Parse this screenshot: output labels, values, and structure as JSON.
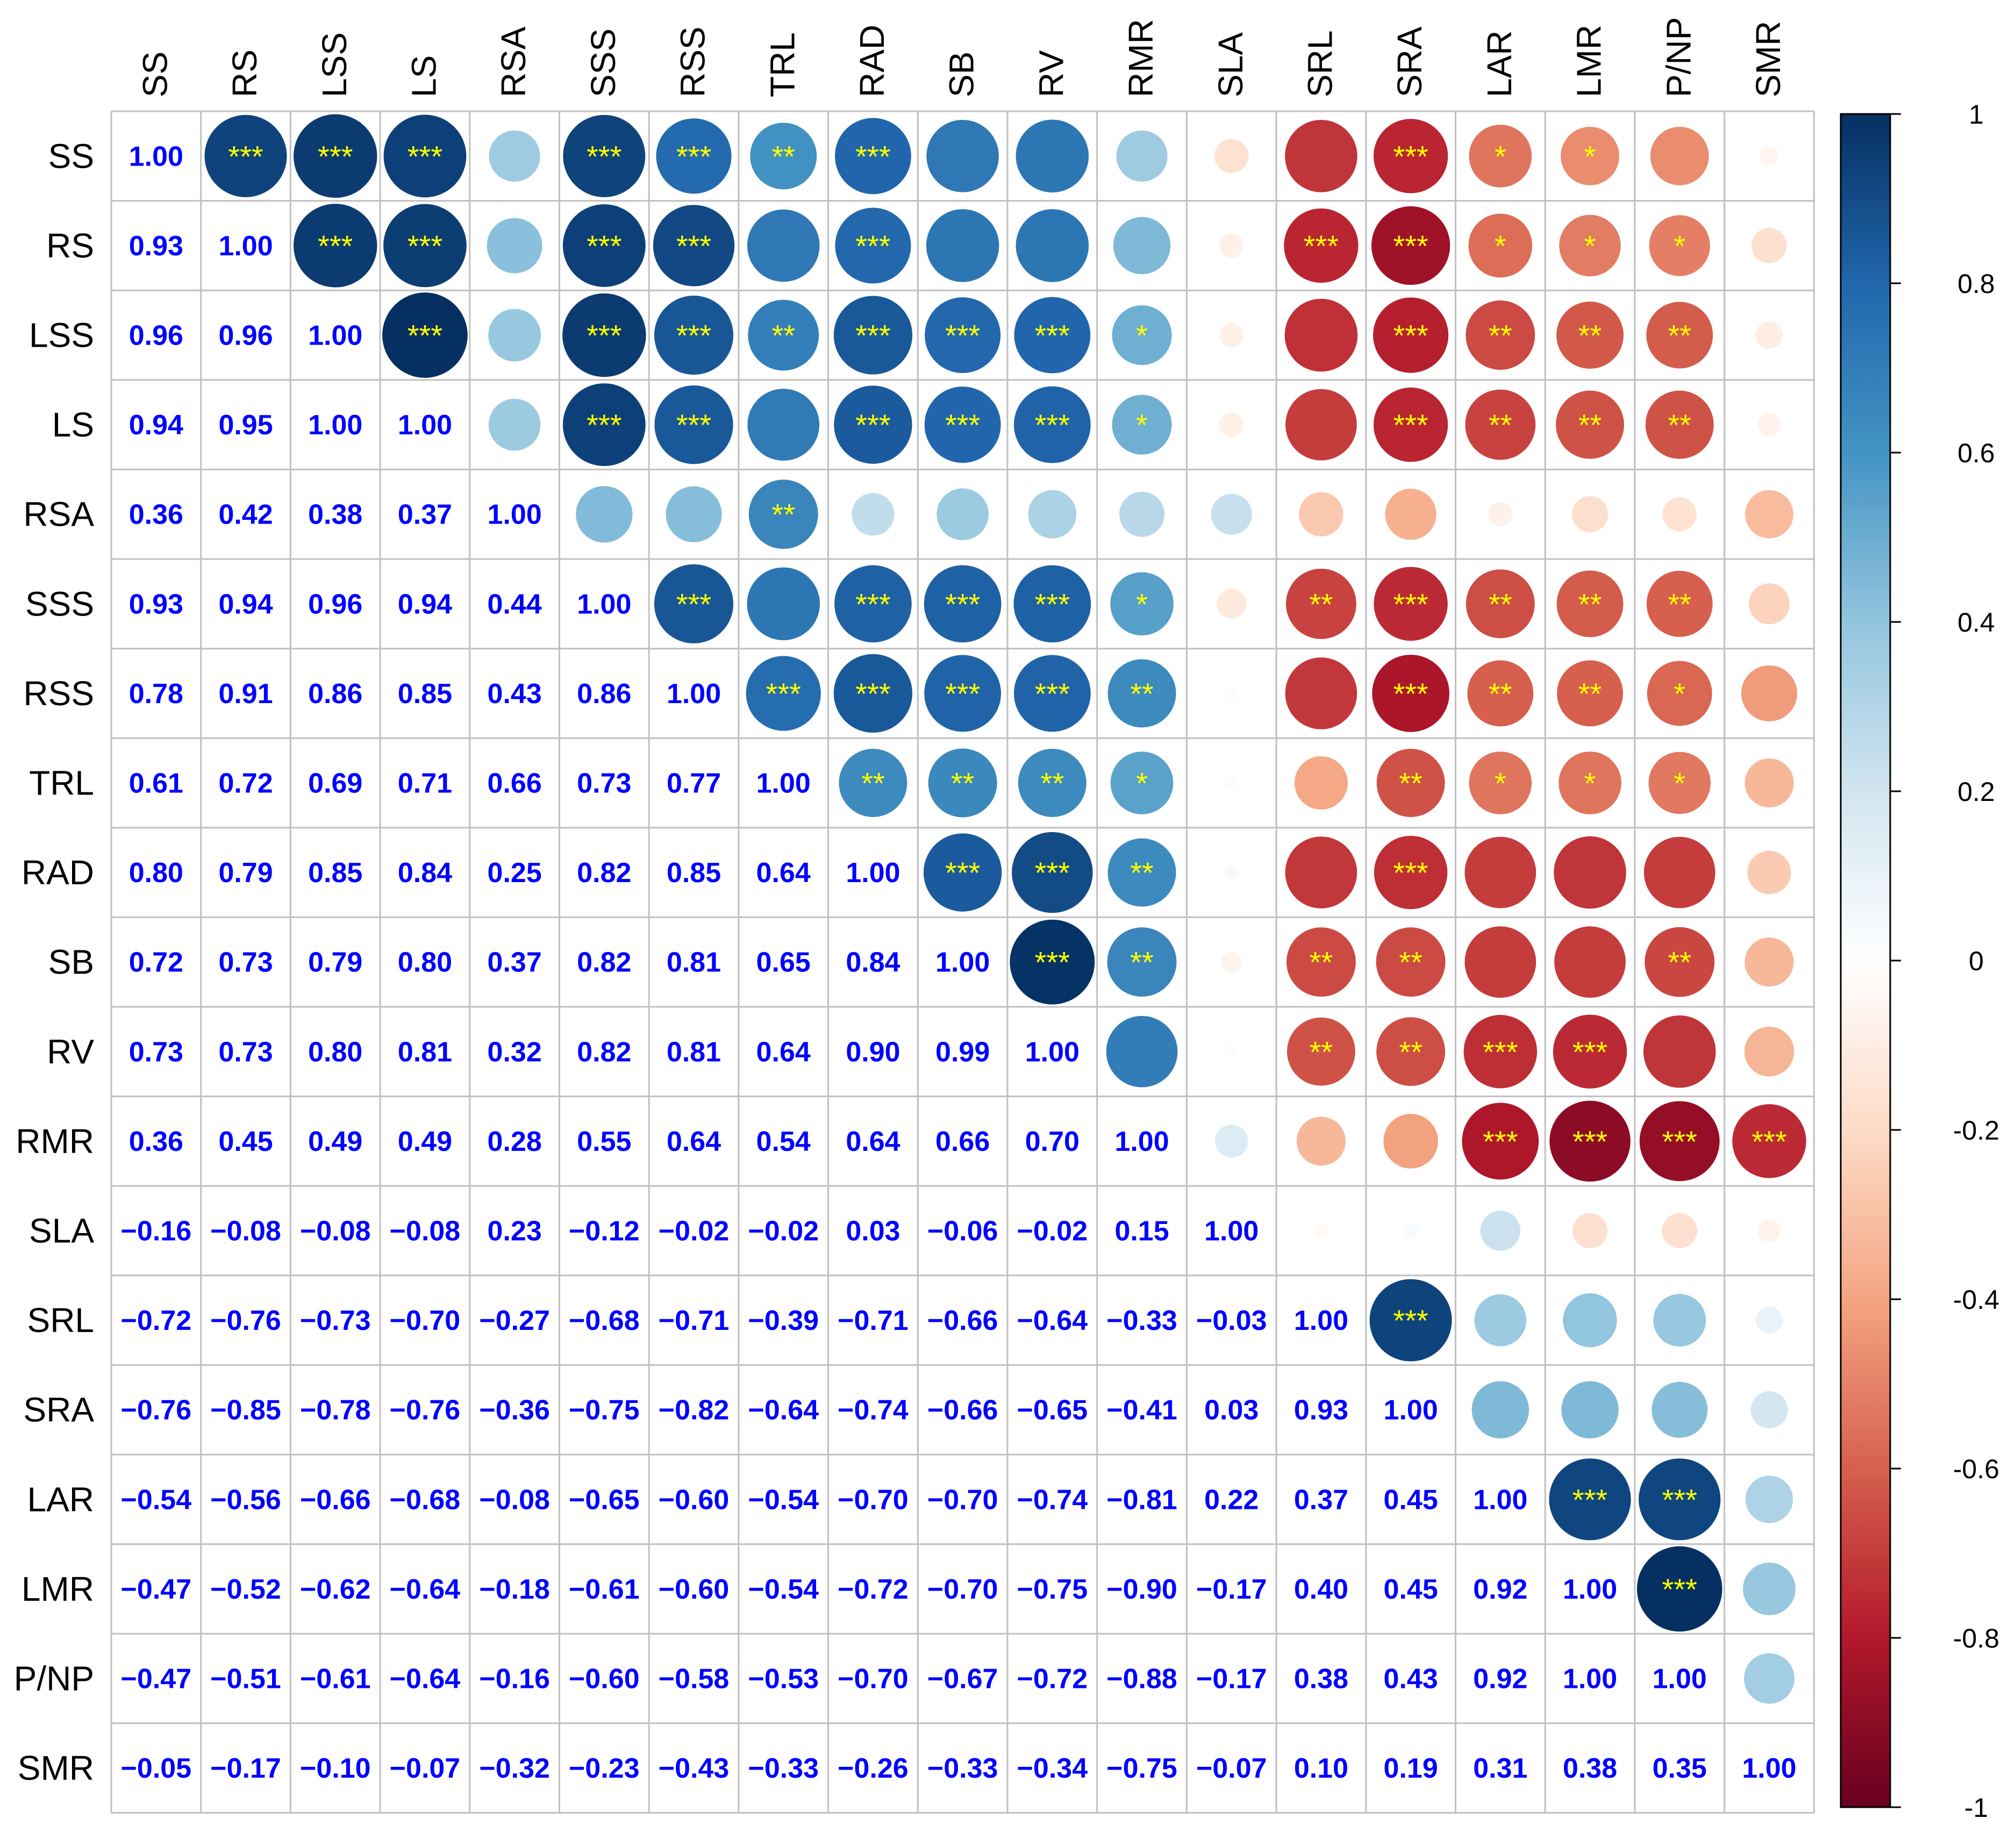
{
  "chart_data": {
    "type": "heatmap",
    "title": "",
    "xlabel": "",
    "ylabel": "",
    "variables": [
      "SS",
      "RS",
      "LSS",
      "LS",
      "RSA",
      "SSS",
      "RSS",
      "TRL",
      "RAD",
      "SB",
      "RV",
      "RMR",
      "SLA",
      "SRL",
      "SRA",
      "LAR",
      "LMR",
      "P/NP",
      "SMR"
    ],
    "lower_triangle_values": [
      [
        1.0
      ],
      [
        0.93,
        1.0
      ],
      [
        0.96,
        0.96,
        1.0
      ],
      [
        0.94,
        0.95,
        1.0,
        1.0
      ],
      [
        0.36,
        0.42,
        0.38,
        0.37,
        1.0
      ],
      [
        0.93,
        0.94,
        0.96,
        0.94,
        0.44,
        1.0
      ],
      [
        0.78,
        0.91,
        0.86,
        0.85,
        0.43,
        0.86,
        1.0
      ],
      [
        0.61,
        0.72,
        0.69,
        0.71,
        0.66,
        0.73,
        0.77,
        1.0
      ],
      [
        0.8,
        0.79,
        0.85,
        0.84,
        0.25,
        0.82,
        0.85,
        0.64,
        1.0
      ],
      [
        0.72,
        0.73,
        0.79,
        0.8,
        0.37,
        0.82,
        0.81,
        0.65,
        0.84,
        1.0
      ],
      [
        0.73,
        0.73,
        0.8,
        0.81,
        0.32,
        0.82,
        0.81,
        0.64,
        0.9,
        0.99,
        1.0
      ],
      [
        0.36,
        0.45,
        0.49,
        0.49,
        0.28,
        0.55,
        0.64,
        0.54,
        0.64,
        0.66,
        0.7,
        1.0
      ],
      [
        -0.16,
        -0.08,
        -0.08,
        -0.08,
        0.23,
        -0.12,
        -0.02,
        -0.02,
        0.03,
        -0.06,
        -0.02,
        0.15,
        1.0
      ],
      [
        -0.72,
        -0.76,
        -0.73,
        -0.7,
        -0.27,
        -0.68,
        -0.71,
        -0.39,
        -0.71,
        -0.66,
        -0.64,
        -0.33,
        -0.03,
        1.0
      ],
      [
        -0.76,
        -0.85,
        -0.78,
        -0.76,
        -0.36,
        -0.75,
        -0.82,
        -0.64,
        -0.74,
        -0.66,
        -0.65,
        -0.41,
        0.03,
        0.93,
        1.0
      ],
      [
        -0.54,
        -0.56,
        -0.66,
        -0.68,
        -0.08,
        -0.65,
        -0.6,
        -0.54,
        -0.7,
        -0.7,
        -0.74,
        -0.81,
        0.22,
        0.37,
        0.45,
        1.0
      ],
      [
        -0.47,
        -0.52,
        -0.62,
        -0.64,
        -0.18,
        -0.61,
        -0.6,
        -0.54,
        -0.72,
        -0.7,
        -0.75,
        -0.9,
        -0.17,
        0.4,
        0.45,
        0.92,
        1.0
      ],
      [
        -0.47,
        -0.51,
        -0.61,
        -0.64,
        -0.16,
        -0.6,
        -0.58,
        -0.53,
        -0.7,
        -0.67,
        -0.72,
        -0.88,
        -0.17,
        0.38,
        0.43,
        0.92,
        1.0,
        1.0
      ],
      [
        -0.05,
        -0.17,
        -0.1,
        -0.07,
        -0.32,
        -0.23,
        -0.43,
        -0.33,
        -0.26,
        -0.33,
        -0.34,
        -0.75,
        -0.07,
        0.1,
        0.19,
        0.31,
        0.38,
        0.35,
        1.0
      ]
    ],
    "upper_circle_values": [
      [
        0.93,
        0.96,
        0.94,
        0.36,
        0.93,
        0.78,
        0.61,
        0.8,
        0.72,
        0.73,
        0.36,
        -0.16,
        -0.72,
        -0.76,
        -0.54,
        -0.47,
        -0.47,
        -0.05
      ],
      [
        0.96,
        0.95,
        0.42,
        0.94,
        0.91,
        0.72,
        0.79,
        0.73,
        0.73,
        0.45,
        -0.08,
        -0.76,
        -0.85,
        -0.56,
        -0.52,
        -0.51,
        -0.17
      ],
      [
        1.0,
        0.38,
        0.96,
        0.86,
        0.69,
        0.85,
        0.79,
        0.8,
        0.49,
        -0.08,
        -0.73,
        -0.78,
        -0.66,
        -0.62,
        -0.61,
        -0.1
      ],
      [
        0.37,
        0.94,
        0.85,
        0.71,
        0.84,
        0.8,
        0.81,
        0.49,
        -0.08,
        -0.7,
        -0.76,
        -0.68,
        -0.64,
        -0.64,
        -0.07
      ],
      [
        0.44,
        0.43,
        0.66,
        0.25,
        0.37,
        0.32,
        0.28,
        0.23,
        -0.27,
        -0.36,
        -0.08,
        -0.18,
        -0.16,
        -0.32
      ],
      [
        0.86,
        0.73,
        0.82,
        0.82,
        0.82,
        0.55,
        -0.12,
        -0.68,
        -0.75,
        -0.65,
        -0.61,
        -0.6,
        -0.23
      ],
      [
        0.77,
        0.85,
        0.81,
        0.81,
        0.64,
        -0.02,
        -0.71,
        -0.82,
        -0.6,
        -0.6,
        -0.58,
        -0.43
      ],
      [
        0.64,
        0.65,
        0.64,
        0.54,
        -0.02,
        -0.39,
        -0.64,
        -0.54,
        -0.54,
        -0.53,
        -0.33
      ],
      [
        0.84,
        0.9,
        0.64,
        0.03,
        -0.71,
        -0.74,
        -0.7,
        -0.72,
        -0.7,
        -0.26
      ],
      [
        0.99,
        0.66,
        -0.06,
        -0.66,
        -0.66,
        -0.7,
        -0.7,
        -0.67,
        -0.33
      ],
      [
        0.7,
        -0.02,
        -0.64,
        -0.65,
        -0.74,
        -0.75,
        -0.72,
        -0.34
      ],
      [
        0.15,
        -0.33,
        -0.41,
        -0.81,
        -0.9,
        -0.88,
        -0.75
      ],
      [
        -0.03,
        0.03,
        0.22,
        -0.17,
        -0.17,
        -0.07
      ],
      [
        0.93,
        0.37,
        0.4,
        0.38,
        0.1
      ],
      [
        0.45,
        0.45,
        0.43,
        0.19
      ],
      [
        0.92,
        0.92,
        0.31
      ],
      [
        1.0,
        0.38
      ],
      [
        0.35
      ]
    ],
    "significance": [
      [
        "***",
        "***",
        "***",
        "",
        "***",
        "***",
        "**",
        "***",
        "",
        "",
        "",
        "",
        "",
        "***",
        "*",
        "*",
        "",
        ""
      ],
      [
        "***",
        "***",
        "",
        "***",
        "***",
        "",
        "***",
        "",
        "",
        "",
        "",
        "***",
        "***",
        "*",
        "*",
        "*",
        ""
      ],
      [
        "***",
        "",
        "***",
        "***",
        "**",
        "***",
        "***",
        "***",
        "*",
        "",
        "",
        "***",
        "**",
        "**",
        "**",
        ""
      ],
      [
        "",
        "***",
        "***",
        "",
        "***",
        "***",
        "***",
        "*",
        "",
        "",
        "***",
        "**",
        "**",
        "**",
        ""
      ],
      [
        "",
        "",
        "**",
        "",
        "",
        "",
        "",
        "",
        "",
        "",
        "",
        "",
        "",
        ""
      ],
      [
        "***",
        "",
        "***",
        "***",
        "***",
        "*",
        "",
        "**",
        "***",
        "**",
        "**",
        "**",
        ""
      ],
      [
        "***",
        "***",
        "***",
        "***",
        "**",
        "",
        "",
        "***",
        "**",
        "**",
        "*",
        ""
      ],
      [
        "**",
        "**",
        "**",
        "*",
        "",
        "",
        "**",
        "*",
        "*",
        "*",
        ""
      ],
      [
        "***",
        "***",
        "**",
        "",
        "",
        "***",
        "",
        "",
        "",
        ""
      ],
      [
        "***",
        "**",
        "",
        "**",
        "**",
        "",
        "",
        "**",
        ""
      ],
      [
        "",
        "",
        "**",
        "**",
        "***",
        "***",
        "",
        ""
      ],
      [
        "",
        "",
        "",
        "***",
        "***",
        "***",
        "***"
      ],
      [
        "",
        "",
        "",
        "",
        "",
        ""
      ],
      [
        "***",
        "",
        "",
        "",
        ""
      ],
      [
        "",
        "",
        "",
        ""
      ],
      [
        "***",
        "***",
        ""
      ],
      [
        "***",
        ""
      ],
      [
        ""
      ]
    ],
    "color_scale": {
      "range": [
        -1,
        1
      ],
      "ticks": [
        "1",
        "0.8",
        "0.6",
        "0.4",
        "0.2",
        "0",
        "-0.2",
        "-0.4",
        "-0.6",
        "-0.8",
        "-1"
      ],
      "colors": [
        "#67001f",
        "#b2182b",
        "#d6604d",
        "#f4a582",
        "#fddbc7",
        "#ffffff",
        "#d1e5f0",
        "#92c5de",
        "#4393c3",
        "#2166ac",
        "#053061"
      ]
    },
    "value_label_color": "#0000ff",
    "significance_label_color": "#ffff00",
    "grid_color": "#c0c0c0"
  }
}
